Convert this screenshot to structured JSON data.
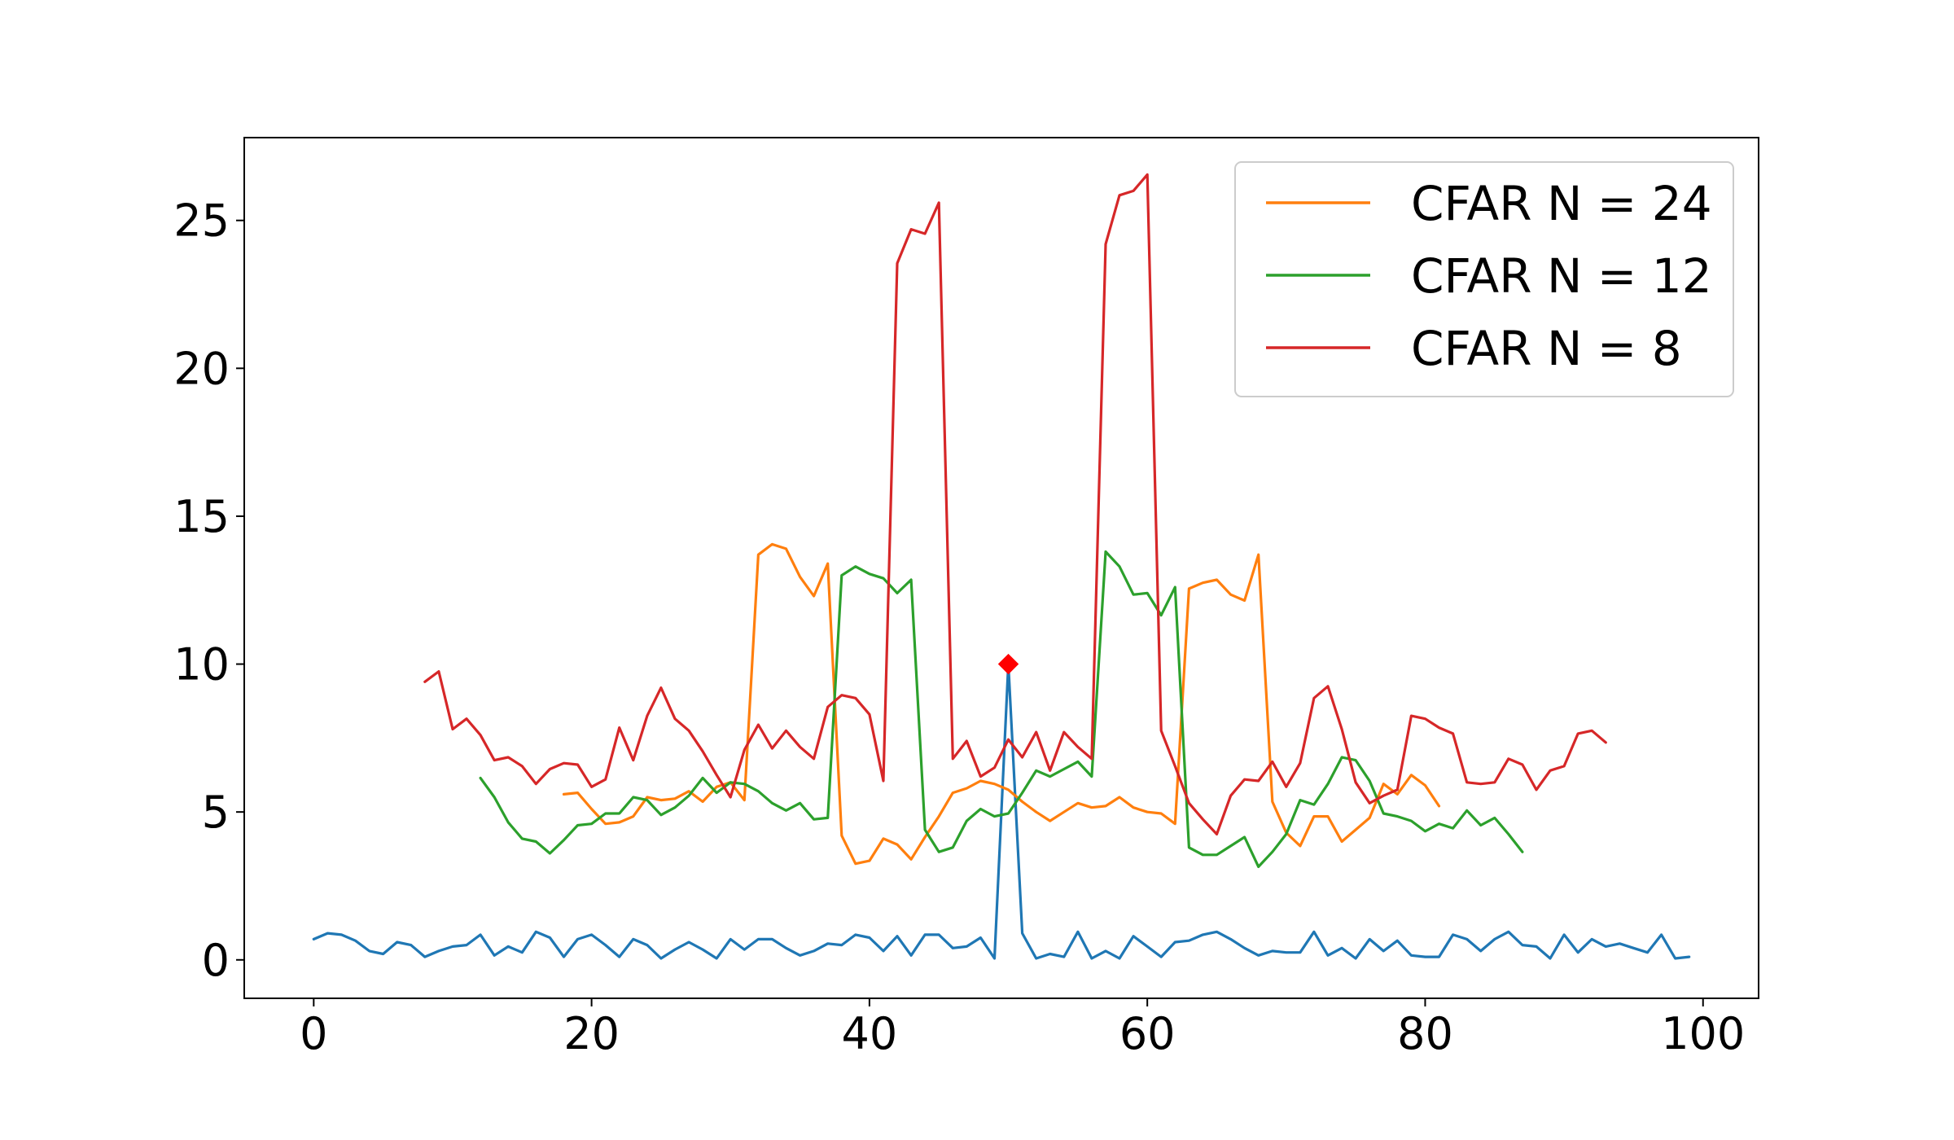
{
  "chart_data": {
    "type": "line",
    "title": "",
    "xlabel": "",
    "ylabel": "",
    "xlim": [
      -5,
      104
    ],
    "ylim": [
      -1.3,
      27.8
    ],
    "xticks": [
      0,
      20,
      40,
      60,
      80,
      100
    ],
    "yticks": [
      0,
      5,
      10,
      15,
      20,
      25
    ],
    "grid": false,
    "legend_position": "top-right",
    "signal": {
      "color": "#1f77b4",
      "x_start": 0,
      "values": [
        0.7,
        0.9,
        0.85,
        0.65,
        0.3,
        0.2,
        0.6,
        0.5,
        0.1,
        0.3,
        0.45,
        0.5,
        0.85,
        0.15,
        0.45,
        0.25,
        0.95,
        0.75,
        0.1,
        0.7,
        0.85,
        0.5,
        0.1,
        0.7,
        0.5,
        0.05,
        0.35,
        0.6,
        0.35,
        0.05,
        0.7,
        0.35,
        0.7,
        0.7,
        0.4,
        0.15,
        0.3,
        0.55,
        0.5,
        0.85,
        0.75,
        0.3,
        0.8,
        0.15,
        0.85,
        0.85,
        0.4,
        0.45,
        0.75,
        0.05,
        10.0,
        0.9,
        0.05,
        0.2,
        0.1,
        0.95,
        0.05,
        0.3,
        0.05,
        0.8,
        0.45,
        0.1,
        0.6,
        0.65,
        0.85,
        0.95,
        0.7,
        0.4,
        0.15,
        0.3,
        0.25,
        0.25,
        0.95,
        0.15,
        0.4,
        0.05,
        0.7,
        0.3,
        0.65,
        0.15,
        0.1,
        0.1,
        0.85,
        0.7,
        0.3,
        0.7,
        0.95,
        0.5,
        0.45,
        0.05,
        0.85,
        0.25,
        0.7,
        0.45,
        0.55,
        0.4,
        0.25,
        0.85,
        0.05,
        0.1
      ]
    },
    "peak_marker": {
      "x": 50,
      "y": 10.0,
      "color": "#ff0000"
    },
    "series": [
      {
        "name": "CFAR N = 24",
        "color": "#ff7f0e",
        "x_start": 18,
        "values": [
          5.6,
          5.65,
          5.1,
          4.6,
          4.65,
          4.85,
          5.5,
          5.4,
          5.45,
          5.7,
          5.35,
          5.85,
          6.0,
          5.4,
          13.7,
          14.05,
          13.9,
          12.95,
          12.3,
          13.4,
          4.2,
          3.25,
          3.35,
          4.1,
          3.9,
          3.4,
          4.15,
          4.85,
          5.65,
          5.8,
          6.05,
          5.95,
          5.75,
          5.35,
          5.0,
          4.7,
          5.0,
          5.3,
          5.15,
          5.2,
          5.5,
          5.15,
          5.0,
          4.95,
          4.6,
          12.55,
          12.75,
          12.85,
          12.35,
          12.15,
          13.7,
          5.35,
          4.3,
          3.85,
          4.85,
          4.85,
          4.0,
          4.4,
          4.8,
          5.95,
          5.6,
          6.25,
          5.9,
          5.2
        ]
      },
      {
        "name": "CFAR N = 12",
        "color": "#2ca02c",
        "x_start": 12,
        "values": [
          6.15,
          5.5,
          4.65,
          4.1,
          4.0,
          3.6,
          4.05,
          4.55,
          4.6,
          4.95,
          4.95,
          5.5,
          5.4,
          4.9,
          5.15,
          5.55,
          6.15,
          5.65,
          6.0,
          5.95,
          5.7,
          5.3,
          5.05,
          5.3,
          4.75,
          4.8,
          13.0,
          13.3,
          13.05,
          12.9,
          12.4,
          12.85,
          4.4,
          3.65,
          3.8,
          4.7,
          5.1,
          4.85,
          4.95,
          5.65,
          6.4,
          6.2,
          6.45,
          6.7,
          6.2,
          13.8,
          13.3,
          12.35,
          12.4,
          11.65,
          12.6,
          3.8,
          3.55,
          3.55,
          3.85,
          4.15,
          3.15,
          3.65,
          4.25,
          5.4,
          5.25,
          5.95,
          6.85,
          6.75,
          6.05,
          4.95,
          4.85,
          4.7,
          4.35,
          4.6,
          4.45,
          5.05,
          4.55,
          4.8,
          4.25,
          3.65
        ]
      },
      {
        "name": "CFAR N = 8",
        "color": "#d62728",
        "x_start": 8,
        "values": [
          9.4,
          9.75,
          7.8,
          8.15,
          7.6,
          6.75,
          6.85,
          6.55,
          5.95,
          6.45,
          6.65,
          6.6,
          5.85,
          6.1,
          7.85,
          6.75,
          8.25,
          9.2,
          8.15,
          7.75,
          7.05,
          6.25,
          5.5,
          7.1,
          7.95,
          7.15,
          7.75,
          7.2,
          6.8,
          8.55,
          8.95,
          8.85,
          8.3,
          6.05,
          23.55,
          24.7,
          24.55,
          25.6,
          6.8,
          7.4,
          6.2,
          6.5,
          7.45,
          6.85,
          7.7,
          6.4,
          7.7,
          7.2,
          6.8,
          24.2,
          25.85,
          26.0,
          26.55,
          7.75,
          6.55,
          5.3,
          4.75,
          4.25,
          5.55,
          6.1,
          6.05,
          6.7,
          5.85,
          6.65,
          8.85,
          9.25,
          7.8,
          6.0,
          5.3,
          5.55,
          5.75,
          8.25,
          8.15,
          7.85,
          7.65,
          6.0,
          5.95,
          6.0,
          6.8,
          6.6,
          5.75,
          6.4,
          6.55,
          7.65,
          7.75,
          7.35
        ]
      }
    ]
  }
}
